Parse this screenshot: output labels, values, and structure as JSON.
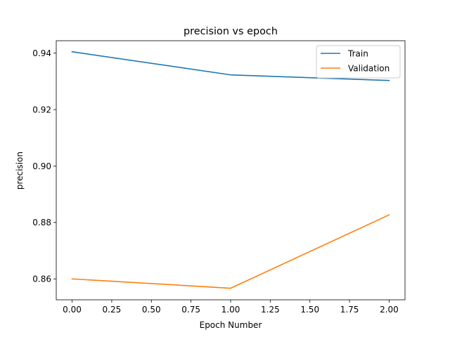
{
  "chart_data": {
    "type": "line",
    "title": "precision vs epoch",
    "xlabel": "Epoch Number",
    "ylabel": "precision",
    "x": [
      0,
      1,
      2
    ],
    "xlim": [
      -0.1,
      2.1
    ],
    "ylim": [
      0.8526,
      0.9444
    ],
    "xticks": [
      0.0,
      0.25,
      0.5,
      0.75,
      1.0,
      1.25,
      1.5,
      1.75,
      2.0
    ],
    "xtick_labels": [
      "0.00",
      "0.25",
      "0.50",
      "0.75",
      "1.00",
      "1.25",
      "1.50",
      "1.75",
      "2.00"
    ],
    "yticks": [
      0.86,
      0.88,
      0.9,
      0.92,
      0.94
    ],
    "ytick_labels": [
      "0.86",
      "0.88",
      "0.90",
      "0.92",
      "0.94"
    ],
    "grid": false,
    "legend_position": "top-right",
    "series": [
      {
        "name": "Train",
        "color": "#1f77b4",
        "values": [
          0.9405,
          0.9323,
          0.9303
        ]
      },
      {
        "name": "Validation",
        "color": "#ff7f0e",
        "values": [
          0.86,
          0.8567,
          0.8827
        ]
      }
    ]
  }
}
